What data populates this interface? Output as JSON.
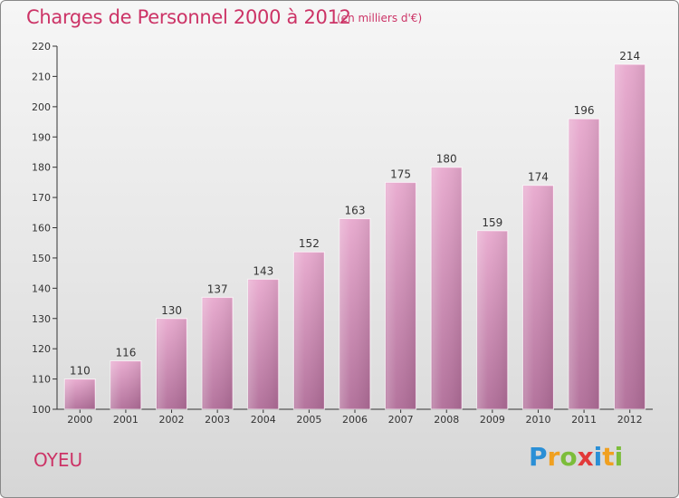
{
  "title": "Charges de Personnel 2000 à 2012",
  "subtitle": "(en milliers d'€)",
  "commune": "OYEU",
  "logo": {
    "letters": [
      {
        "ch": "P",
        "color": "#2a8fd6"
      },
      {
        "ch": "r",
        "color": "#f0a020"
      },
      {
        "ch": "o",
        "color": "#7cbd3a"
      },
      {
        "ch": "x",
        "color": "#e23a3a"
      },
      {
        "ch": "i",
        "color": "#2a8fd6"
      },
      {
        "ch": "t",
        "color": "#f0a020"
      },
      {
        "ch": "i",
        "color": "#7cbd3a"
      }
    ]
  },
  "colors": {
    "bar_top": "#e8a9ce",
    "bar_bottom": "#b06d98",
    "accent": "#cc3366"
  },
  "chart_data": {
    "type": "bar",
    "title": "Charges de Personnel 2000 à 2012",
    "subtitle": "(en milliers d'€)",
    "categories": [
      "2000",
      "2001",
      "2002",
      "2003",
      "2004",
      "2005",
      "2006",
      "2007",
      "2008",
      "2009",
      "2010",
      "2011",
      "2012"
    ],
    "values": [
      110,
      116,
      130,
      137,
      143,
      152,
      163,
      175,
      180,
      159,
      174,
      196,
      214
    ],
    "ylim": [
      100,
      220
    ],
    "yticks": [
      100,
      110,
      120,
      130,
      140,
      150,
      160,
      170,
      180,
      190,
      200,
      210,
      220
    ],
    "grid": false,
    "xlabel": "",
    "ylabel": ""
  }
}
